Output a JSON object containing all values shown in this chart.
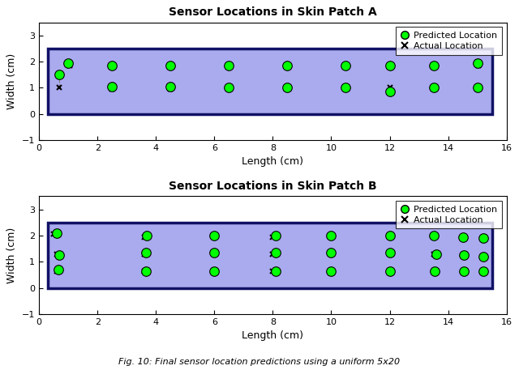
{
  "title_A": "Sensor Locations in Skin Patch A",
  "title_B": "Sensor Locations in Skin Patch B",
  "xlabel": "Length (cm)",
  "ylabel": "Width (cm)",
  "xlim": [
    0,
    16
  ],
  "rect_color": "#aaaaee",
  "rect_edge_color": "#111166",
  "background_color": "#ffffff",
  "green_color": "#00ff00",
  "predicted_A": [
    [
      0.7,
      1.5
    ],
    [
      1.0,
      1.95
    ],
    [
      2.5,
      1.85
    ],
    [
      2.5,
      1.05
    ],
    [
      4.5,
      1.85
    ],
    [
      4.5,
      1.05
    ],
    [
      6.5,
      1.85
    ],
    [
      6.5,
      1.0
    ],
    [
      8.5,
      1.85
    ],
    [
      8.5,
      1.0
    ],
    [
      10.5,
      1.85
    ],
    [
      10.5,
      1.0
    ],
    [
      12.0,
      1.85
    ],
    [
      12.0,
      0.85
    ],
    [
      13.5,
      1.85
    ],
    [
      13.5,
      1.0
    ],
    [
      15.0,
      1.95
    ],
    [
      15.0,
      1.0
    ]
  ],
  "actual_A": [
    [
      0.7,
      1.0
    ],
    [
      1.05,
      1.85
    ],
    [
      2.5,
      0.95
    ],
    [
      2.55,
      1.85
    ],
    [
      4.5,
      0.95
    ],
    [
      4.55,
      1.85
    ],
    [
      6.5,
      0.95
    ],
    [
      6.55,
      1.85
    ],
    [
      8.5,
      0.95
    ],
    [
      8.55,
      1.85
    ],
    [
      10.5,
      1.0
    ],
    [
      10.55,
      1.85
    ],
    [
      12.0,
      1.0
    ],
    [
      12.05,
      1.85
    ],
    [
      13.5,
      1.0
    ],
    [
      13.55,
      1.85
    ],
    [
      15.0,
      1.0
    ],
    [
      15.05,
      1.85
    ]
  ],
  "predicted_B": [
    [
      0.6,
      2.1
    ],
    [
      0.7,
      1.25
    ],
    [
      0.65,
      0.7
    ],
    [
      3.7,
      2.0
    ],
    [
      3.65,
      1.35
    ],
    [
      3.65,
      0.65
    ],
    [
      6.0,
      2.0
    ],
    [
      6.0,
      1.35
    ],
    [
      6.0,
      0.65
    ],
    [
      8.1,
      2.0
    ],
    [
      8.1,
      1.35
    ],
    [
      8.1,
      0.65
    ],
    [
      10.0,
      2.0
    ],
    [
      10.0,
      1.35
    ],
    [
      10.0,
      0.65
    ],
    [
      12.0,
      2.0
    ],
    [
      12.0,
      1.35
    ],
    [
      12.0,
      0.65
    ],
    [
      13.5,
      2.0
    ],
    [
      13.6,
      1.3
    ],
    [
      13.55,
      0.65
    ],
    [
      14.5,
      1.95
    ],
    [
      14.55,
      1.25
    ],
    [
      14.55,
      0.65
    ],
    [
      15.2,
      1.9
    ],
    [
      15.2,
      1.2
    ],
    [
      15.2,
      0.65
    ]
  ],
  "actual_B": [
    [
      0.5,
      2.05
    ],
    [
      0.6,
      1.3
    ],
    [
      0.6,
      0.65
    ],
    [
      3.6,
      1.95
    ],
    [
      3.6,
      1.3
    ],
    [
      3.6,
      0.65
    ],
    [
      6.0,
      1.95
    ],
    [
      6.0,
      1.3
    ],
    [
      6.0,
      0.65
    ],
    [
      8.0,
      1.95
    ],
    [
      8.0,
      1.3
    ],
    [
      8.0,
      0.65
    ],
    [
      10.0,
      1.95
    ],
    [
      10.0,
      1.3
    ],
    [
      10.0,
      0.65
    ],
    [
      12.0,
      1.95
    ],
    [
      12.0,
      1.3
    ],
    [
      12.0,
      0.65
    ],
    [
      13.5,
      1.95
    ],
    [
      13.5,
      1.3
    ],
    [
      13.5,
      0.65
    ],
    [
      14.5,
      1.95
    ],
    [
      14.5,
      1.25
    ],
    [
      14.5,
      0.65
    ],
    [
      15.2,
      1.95
    ],
    [
      15.2,
      1.2
    ],
    [
      15.2,
      0.65
    ]
  ],
  "xticks": [
    0,
    2,
    4,
    6,
    8,
    10,
    12,
    14,
    16
  ],
  "yticks": [
    -1,
    0,
    1,
    2,
    3
  ],
  "legend_fontsize": 8,
  "title_fontsize": 10,
  "caption": "Fig. 10: Final sensor location predictions using a uniform 5x20"
}
